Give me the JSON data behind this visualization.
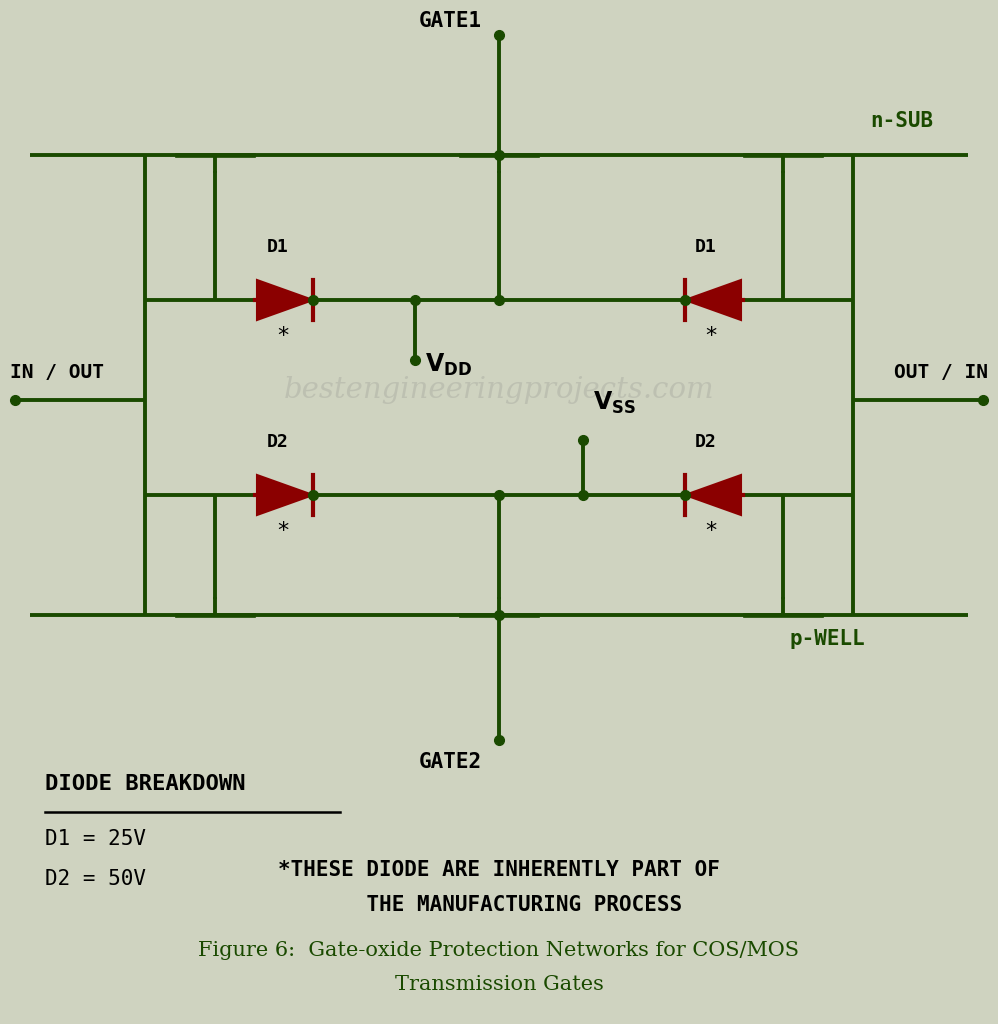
{
  "bg_color": "#cfd3c0",
  "line_color": "#1a4a00",
  "diode_color": "#8b0000",
  "dot_color": "#1a4a00",
  "title": "Figure 6:  Gate-oxide Protection Networks for COS/MOS\nTransmission Gates",
  "subtitle_line1": "*THESE DIODE ARE INHERENTLY PART OF",
  "subtitle_line2": "    THE MANUFACTURING PROCESS",
  "breakdown_title": "DIODE BREAKDOWN",
  "breakdown_d1": "D1 = 25V",
  "breakdown_d2": "D2 = 50V",
  "watermark": "bestengineeringprojects.com",
  "label_gate1": "GATE1",
  "label_gate2": "GATE2",
  "label_nsub": "n-SUB",
  "label_pwell": "p-WELL",
  "label_in_out": "IN / OUT",
  "label_out_in": "OUT / IN",
  "label_d1": "D1",
  "label_d2": "D2"
}
